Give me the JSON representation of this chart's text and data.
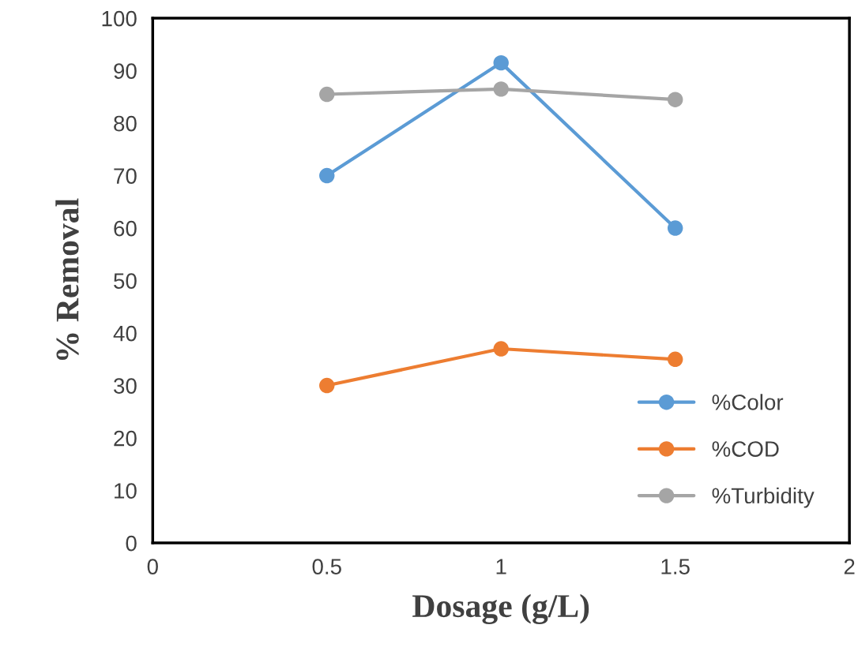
{
  "chart_data": {
    "type": "line",
    "xlabel": "Dosage (g/L)",
    "ylabel": "% Removal",
    "x": [
      0.5,
      1,
      1.5
    ],
    "series": [
      {
        "name": "%Color",
        "color": "#5b9bd5",
        "values": [
          70,
          91.5,
          60
        ]
      },
      {
        "name": "%COD",
        "color": "#ed7d31",
        "values": [
          30,
          37,
          35
        ]
      },
      {
        "name": "%Turbidity",
        "color": "#a5a5a5",
        "values": [
          85.5,
          86.5,
          84.5
        ]
      }
    ],
    "xlim": [
      0,
      2
    ],
    "xticks": [
      0,
      0.5,
      1,
      1.5,
      2
    ],
    "ylim": [
      0,
      100
    ],
    "yticks": [
      0,
      10,
      20,
      30,
      40,
      50,
      60,
      70,
      80,
      90,
      100
    ],
    "grid": false,
    "legend": "bottom right",
    "marker": "circle",
    "line_style": "solid"
  }
}
